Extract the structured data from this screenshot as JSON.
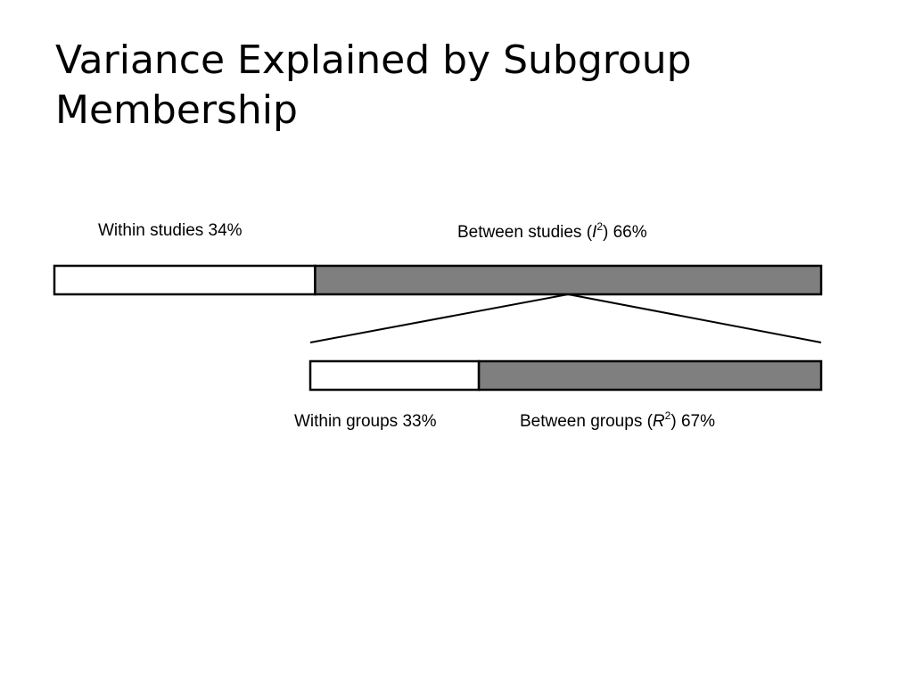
{
  "title": "Variance Explained by Subgroup Membership",
  "colors": {
    "within_fill": "#ffffff",
    "between_fill": "#7f7f7f",
    "outline": "#000000"
  },
  "top_bar": {
    "within": {
      "label": "Within studies 34%",
      "percent": 34
    },
    "between": {
      "prefix": "Between studies (",
      "symbol": "I",
      "superscript": "2",
      "suffix": ") 66%",
      "percent": 66
    }
  },
  "bottom_bar": {
    "within": {
      "label": "Within groups 33%",
      "percent": 33
    },
    "between": {
      "prefix": "Between groups (",
      "symbol": "R",
      "superscript": "2",
      "suffix": ") 67%",
      "percent": 67
    }
  }
}
